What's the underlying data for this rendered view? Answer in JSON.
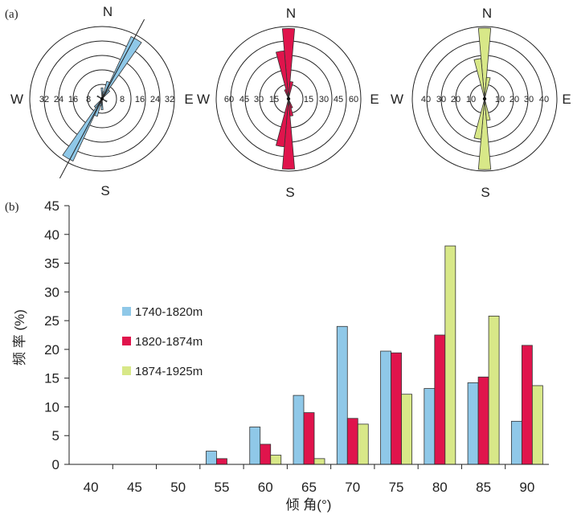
{
  "panels": {
    "a": "(a)",
    "b": "(b)"
  },
  "roses": [
    {
      "color": "#8fc8e8",
      "labels_w": [
        "32",
        "24",
        "16",
        "8"
      ],
      "labels_e": [
        "8",
        "16",
        "24",
        "32"
      ],
      "rmax": 40,
      "trend_deg": 28,
      "petals": [
        {
          "az": 0,
          "v": 6
        },
        {
          "az": 10,
          "v": 4
        },
        {
          "az": 20,
          "v": 10
        },
        {
          "az": 30,
          "v": 38
        },
        {
          "az": 40,
          "v": 6
        },
        {
          "az": 180,
          "v": 6
        },
        {
          "az": 190,
          "v": 4
        },
        {
          "az": 200,
          "v": 10
        },
        {
          "az": 210,
          "v": 38
        },
        {
          "az": 220,
          "v": 6
        },
        {
          "az": 300,
          "v": 3
        },
        {
          "az": 120,
          "v": 3
        }
      ]
    },
    {
      "color": "#e0144c",
      "labels_w": [
        "60",
        "45",
        "30",
        "15"
      ],
      "labels_e": [
        "15",
        "30",
        "45",
        "60"
      ],
      "rmax": 75,
      "petals": [
        {
          "az": 0,
          "v": 73
        },
        {
          "az": 10,
          "v": 18
        },
        {
          "az": 350,
          "v": 50
        },
        {
          "az": 180,
          "v": 73
        },
        {
          "az": 190,
          "v": 50
        },
        {
          "az": 170,
          "v": 18
        },
        {
          "az": 340,
          "v": 10
        },
        {
          "az": 160,
          "v": 10
        }
      ]
    },
    {
      "color": "#d8e888",
      "labels_w": [
        "40",
        "30",
        "20",
        "10"
      ],
      "labels_e": [
        "10",
        "20",
        "30",
        "40"
      ],
      "rmax": 50,
      "petals": [
        {
          "az": 0,
          "v": 49
        },
        {
          "az": 10,
          "v": 15
        },
        {
          "az": 350,
          "v": 28
        },
        {
          "az": 180,
          "v": 49
        },
        {
          "az": 190,
          "v": 28
        },
        {
          "az": 170,
          "v": 15
        }
      ]
    }
  ],
  "directions": {
    "n": "N",
    "s": "S",
    "e": "E",
    "w": "W"
  },
  "chart_data": {
    "type": "bar",
    "categories": [
      "40",
      "45",
      "50",
      "55",
      "60",
      "65",
      "70",
      "75",
      "80",
      "85",
      "90"
    ],
    "series": [
      {
        "name": "1740-1820m",
        "color": "#8fc8e8",
        "values": [
          0,
          0,
          0,
          2.3,
          6.5,
          12,
          24,
          19.7,
          13.2,
          14.2,
          7.5
        ]
      },
      {
        "name": "1820-1874m",
        "color": "#e0144c",
        "values": [
          0,
          0,
          0,
          1,
          3.5,
          9,
          8,
          19.4,
          22.5,
          15.2,
          20.7
        ]
      },
      {
        "name": "1874-1925m",
        "color": "#d8e888",
        "values": [
          0,
          0,
          0,
          0,
          1.6,
          1,
          7,
          12.2,
          38,
          25.8,
          13.7
        ]
      }
    ],
    "xlabel": "倾 角(°)",
    "ylabel": "频 率 (%)",
    "ylim": [
      0,
      45
    ],
    "yticks": [
      "0",
      "5",
      "10",
      "15",
      "20",
      "25",
      "30",
      "35",
      "40",
      "45"
    ],
    "legend_position": "left-middle"
  }
}
